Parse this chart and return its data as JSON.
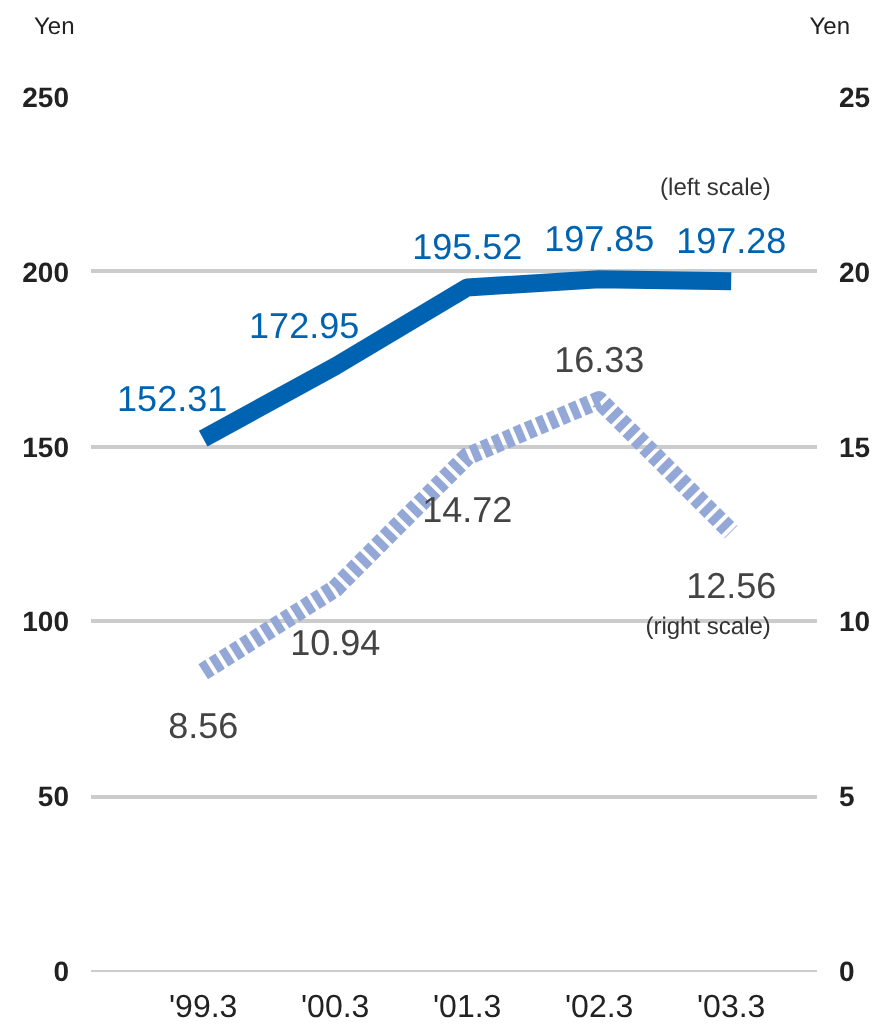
{
  "chart_data": {
    "type": "line",
    "ylabel": "Yen",
    "y2label": "Yen",
    "categories": [
      "'99.3",
      "'00.3",
      "'01.3",
      "'02.3",
      "'03.3"
    ],
    "series": [
      {
        "color": "#0063b1",
        "values": [
          152.31,
          172.95,
          195.52,
          197.85,
          197.28
        ],
        "line_style": "solid"
      },
      {
        "color": "#93a8d6",
        "values": [
          8.56,
          10.94,
          14.72,
          16.33,
          12.56
        ],
        "axis": "y2",
        "line_style": "dashed"
      }
    ],
    "ylim": [
      0,
      250
    ],
    "yticks": [
      0,
      50,
      100,
      150,
      200,
      250
    ],
    "y2lim": [
      0,
      25
    ],
    "y2ticks": [
      0,
      5,
      10,
      15,
      20,
      25
    ],
    "grid": "y",
    "data_labels": true,
    "marker": "none",
    "annotations": [
      "(left scale)",
      "(right scale)"
    ]
  }
}
